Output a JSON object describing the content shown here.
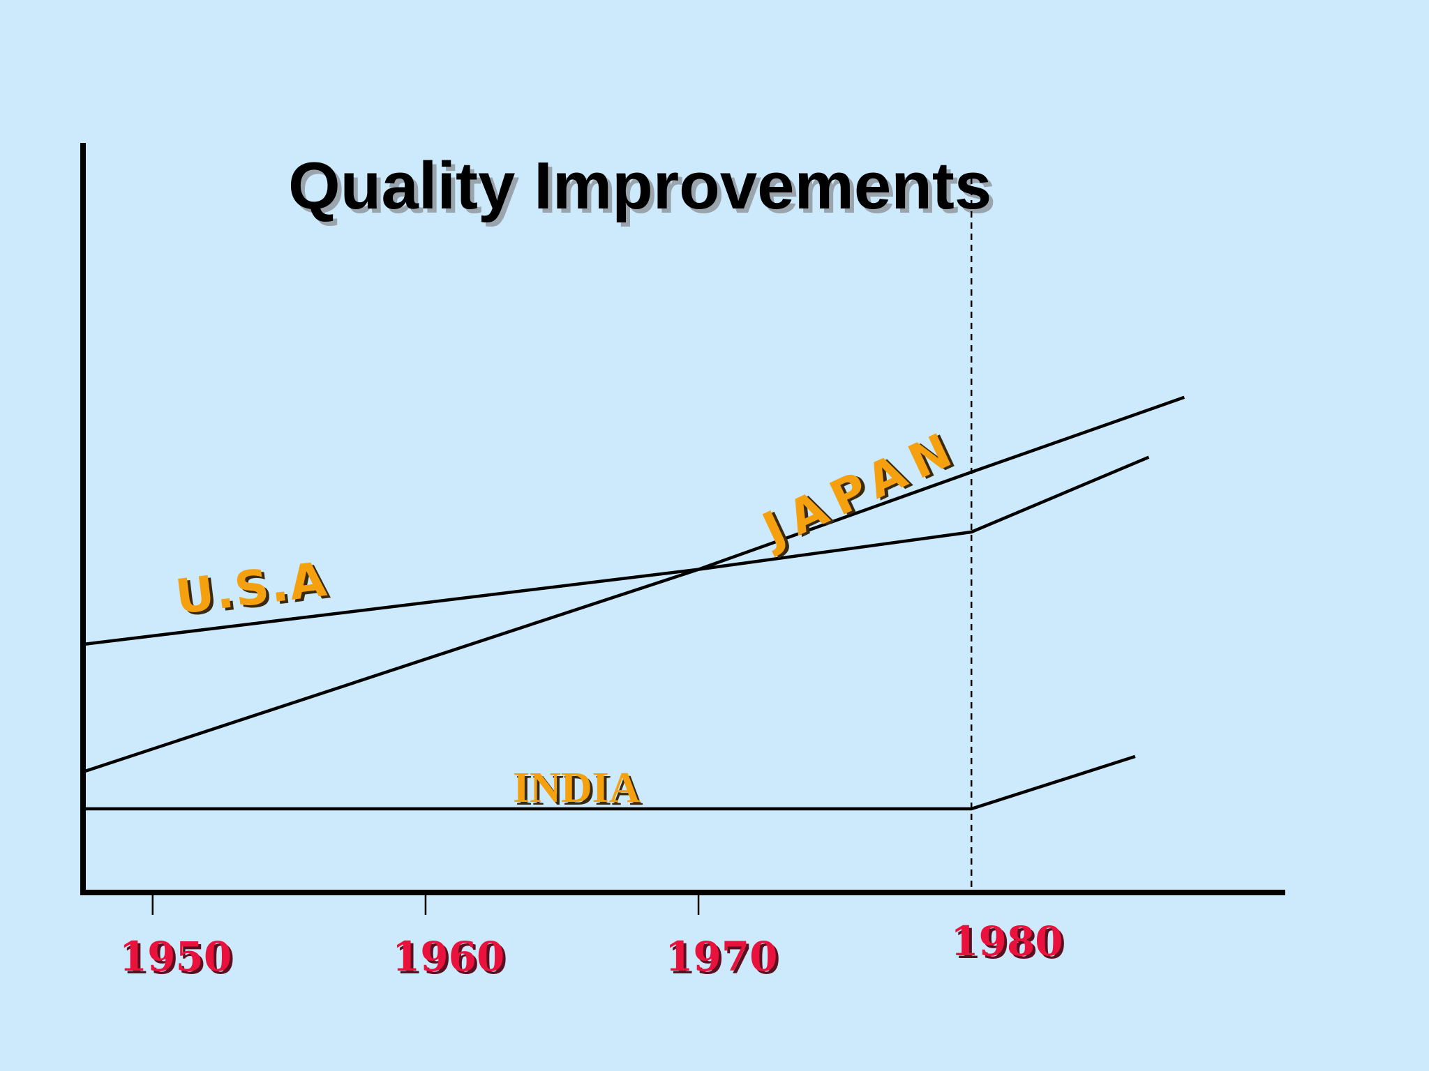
{
  "chart_data": {
    "type": "line",
    "title": "Quality Improvements",
    "xlabel": "",
    "ylabel": "",
    "x_ticks": [
      "1950",
      "1960",
      "1970",
      "1980"
    ],
    "xlim": [
      1947.5,
      1991.5
    ],
    "ylim": [
      0,
      100
    ],
    "grid": false,
    "reference_line": {
      "x": 1980,
      "style": "dashed"
    },
    "series": [
      {
        "name": "U.S.A",
        "x": [
          1947.5,
          1970,
          1980,
          1986.5
        ],
        "y": [
          33,
          43,
          48,
          58
        ]
      },
      {
        "name": "JAPAN",
        "x": [
          1947.5,
          1970,
          1980,
          1987.8
        ],
        "y": [
          16,
          43,
          56,
          66
        ]
      },
      {
        "name": "INDIA",
        "x": [
          1947.5,
          1980,
          1986
        ],
        "y": [
          11,
          11,
          18
        ]
      }
    ],
    "colors": {
      "background": "#cdeafc",
      "lines": "#000000",
      "series_labels": "#f5a00f",
      "tick_labels": "#e8123c"
    }
  }
}
